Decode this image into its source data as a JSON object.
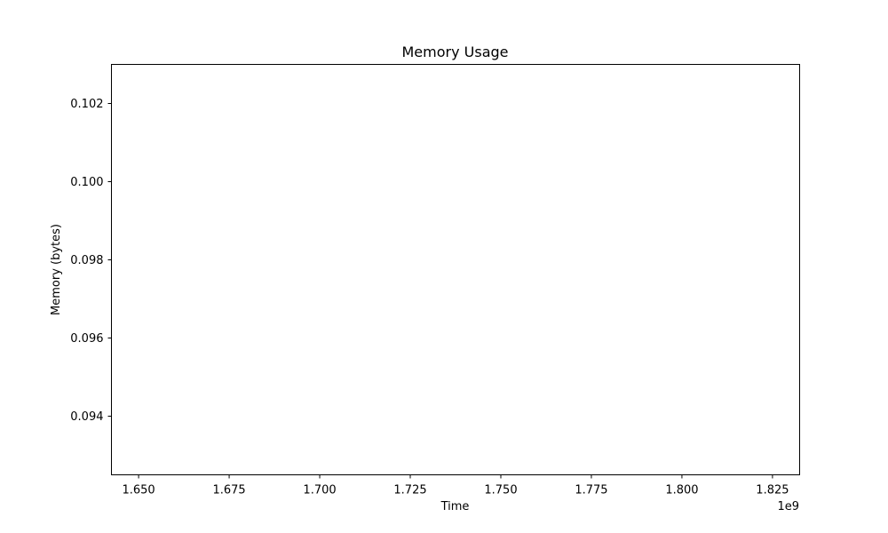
{
  "chart_data": {
    "type": "line",
    "title": "Memory Usage",
    "xlabel": "Time",
    "ylabel": "Memory (bytes)",
    "x_offset_label": "1e9",
    "xlim": [
      1.6425,
      1.8325
    ],
    "ylim": [
      0.0925,
      0.103
    ],
    "x_ticks": [
      {
        "value": 1.65,
        "label": "1.650"
      },
      {
        "value": 1.675,
        "label": "1.675"
      },
      {
        "value": 1.7,
        "label": "1.700"
      },
      {
        "value": 1.725,
        "label": "1.725"
      },
      {
        "value": 1.75,
        "label": "1.750"
      },
      {
        "value": 1.775,
        "label": "1.775"
      },
      {
        "value": 1.8,
        "label": "1.800"
      },
      {
        "value": 1.825,
        "label": "1.825"
      }
    ],
    "y_ticks": [
      {
        "value": 0.094,
        "label": "0.094"
      },
      {
        "value": 0.096,
        "label": "0.096"
      },
      {
        "value": 0.098,
        "label": "0.098"
      },
      {
        "value": 0.1,
        "label": "0.100"
      },
      {
        "value": 0.102,
        "label": "0.102"
      }
    ],
    "series": [],
    "grid": false,
    "legend": "none"
  }
}
